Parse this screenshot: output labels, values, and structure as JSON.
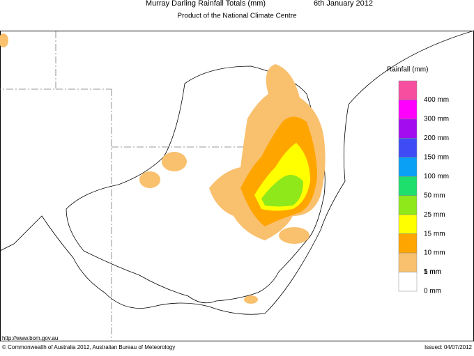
{
  "header": {
    "title": "Murray Darling Rainfall Totals (mm)",
    "date": "6th January 2012",
    "subtitle": "Product of the National Climate Centre"
  },
  "legend": {
    "title": "Rainfall (mm)",
    "items": [
      {
        "color": "#f74ea0",
        "label": "400 mm"
      },
      {
        "color": "#ff00ff",
        "label": "300 mm"
      },
      {
        "color": "#a40cf0",
        "label": "200 mm"
      },
      {
        "color": "#3f4cf5",
        "label": "150 mm"
      },
      {
        "color": "#0aa0f5",
        "label": "100 mm"
      },
      {
        "color": "#1ede6c",
        "label": "50 mm"
      },
      {
        "color": "#8fe81a",
        "label": "25 mm"
      },
      {
        "color": "#ffff00",
        "label": "15 mm"
      },
      {
        "color": "#ffa500",
        "label": "10 mm"
      },
      {
        "color": "#f9c06e",
        "label": "5 mm"
      },
      {
        "color": "#ffffff",
        "label": "1 mm"
      }
    ]
  },
  "footer": {
    "url": "http://www.bom.gov.au",
    "copyright": "© Commonwealth of Australia 2012, Australian Bureau of Meteorology",
    "issued": "Issued: 04/07/2012"
  },
  "extra_label": "0 mm"
}
